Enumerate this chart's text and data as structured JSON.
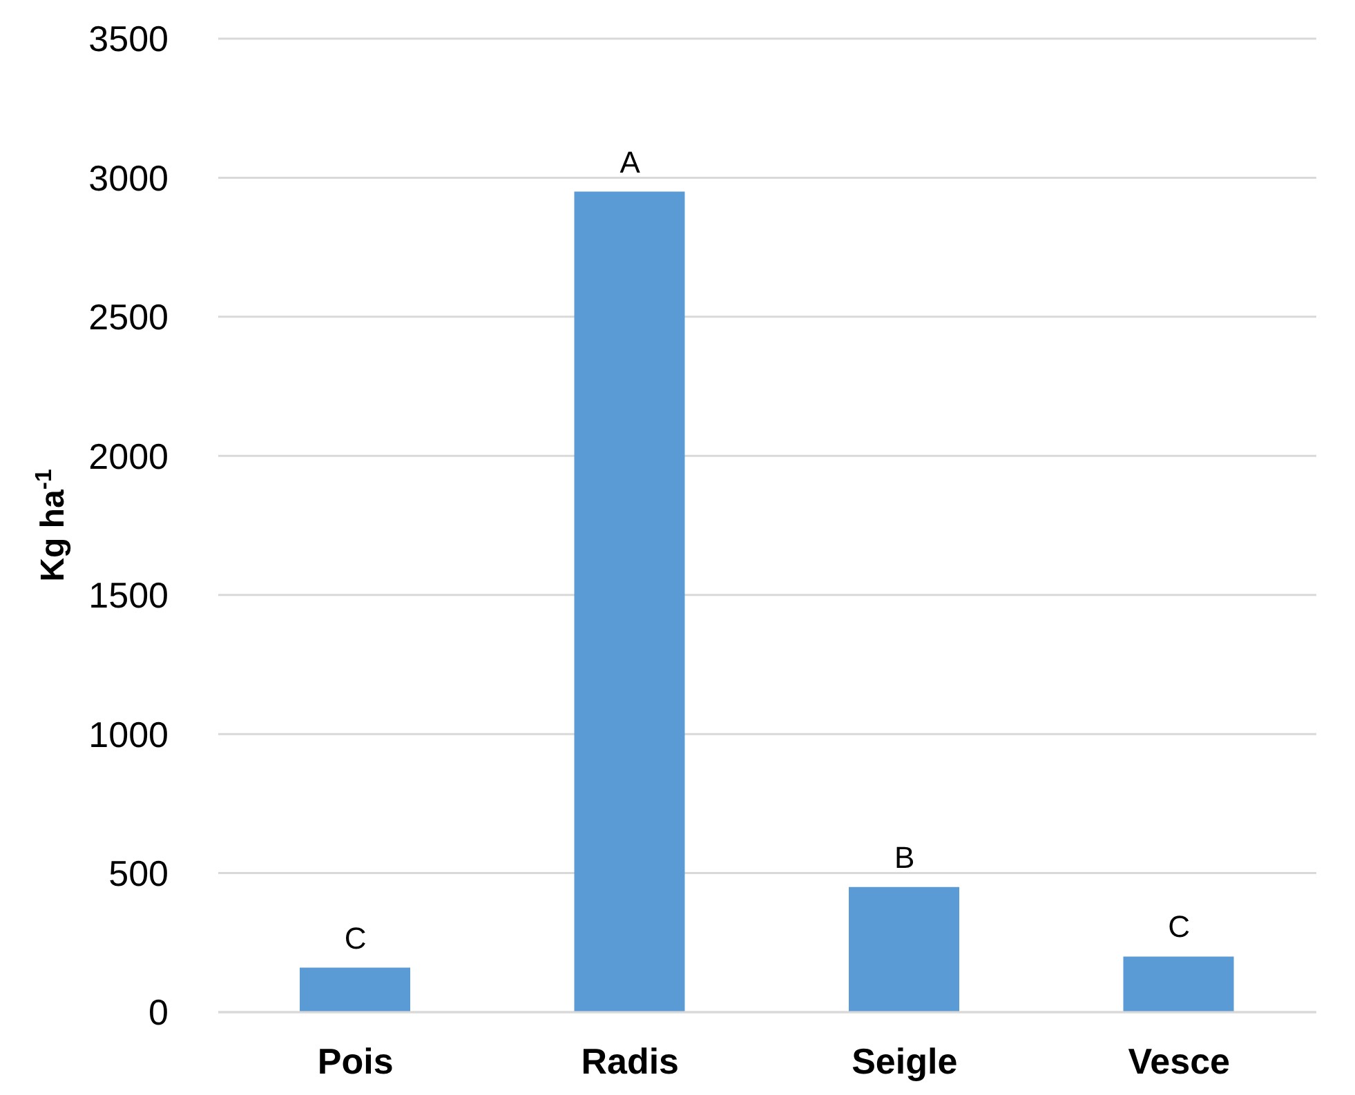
{
  "chart_data": {
    "type": "bar",
    "ylabel": "Kg ha$^{-1}$",
    "categories": [
      "Pois",
      "Radis",
      "Seigle",
      "Vesce"
    ],
    "values": [
      160,
      2950,
      450,
      200
    ],
    "color": "#5b9bd5",
    "ylim": [
      0,
      3500
    ],
    "yticks": [
      0,
      500,
      1000,
      1500,
      2000,
      2500,
      3000,
      3500
    ],
    "grid": "y",
    "legend": false,
    "annotations": [
      {
        "text": "C",
        "x": "Pois",
        "y": 160
      },
      {
        "text": "A",
        "x": "Radis",
        "y": 2950
      },
      {
        "text": "B",
        "x": "Seigle",
        "y": 450
      },
      {
        "text": "C",
        "x": "Vesce",
        "y": 200
      }
    ]
  }
}
